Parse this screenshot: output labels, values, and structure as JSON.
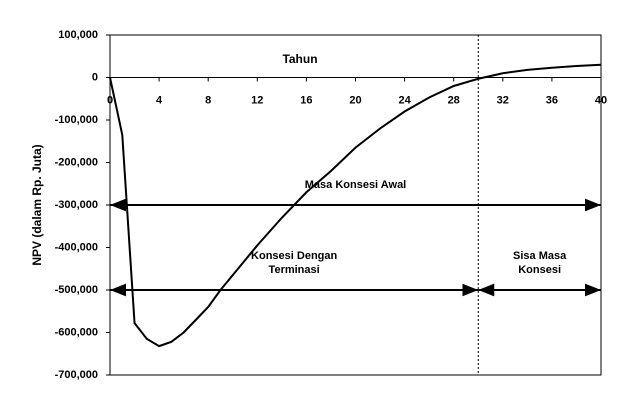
{
  "chart_data": {
    "type": "line",
    "x_label": "Tahun",
    "y_label": "NPV (dalam Rp. Juta)",
    "x": [
      0,
      1,
      2,
      3,
      4,
      5,
      6,
      7,
      8,
      9,
      10,
      12,
      14,
      16,
      18,
      20,
      22,
      24,
      26,
      28,
      30,
      32,
      34,
      36,
      38,
      40
    ],
    "series": [
      {
        "color": "#000000",
        "values": [
          0,
          -135000,
          -578000,
          -615000,
          -632000,
          -622000,
          -600000,
          -570000,
          -540000,
          -500000,
          -465000,
          -395000,
          -330000,
          -270000,
          -220000,
          -165000,
          -120000,
          -80000,
          -47000,
          -20000,
          -3000,
          10000,
          18000,
          23000,
          27000,
          30000
        ]
      }
    ],
    "xlim": [
      0,
      40
    ],
    "xticks": [
      0,
      4,
      8,
      12,
      16,
      20,
      24,
      28,
      32,
      36,
      40
    ],
    "ylim": [
      -700000,
      100000
    ],
    "yticks": [
      {
        "value": 100000,
        "label": "100,000"
      },
      0,
      {
        "value": -100000,
        "label": "-100,000"
      },
      {
        "value": -200000,
        "label": "-200,000"
      },
      {
        "value": -300000,
        "label": "-300,000"
      },
      {
        "value": -400000,
        "label": "-400,000"
      },
      {
        "value": -500000,
        "label": "-500,000"
      },
      {
        "value": -600000,
        "label": "-600,000"
      },
      {
        "value": -700000,
        "label": "-700,000"
      }
    ],
    "vline": 30,
    "annotations": [
      {
        "lines": [
          "Masa Konsesi Awal"
        ],
        "start": 0,
        "end": 40,
        "y": -300000
      },
      {
        "lines": [
          "Konsesi Dengan",
          "Terminasi"
        ],
        "start": 0,
        "end": 30,
        "y": -500000
      },
      {
        "lines": [
          "Sisa Masa",
          "Konsesi"
        ],
        "start": 30,
        "end": 40,
        "y": -500000
      }
    ]
  }
}
